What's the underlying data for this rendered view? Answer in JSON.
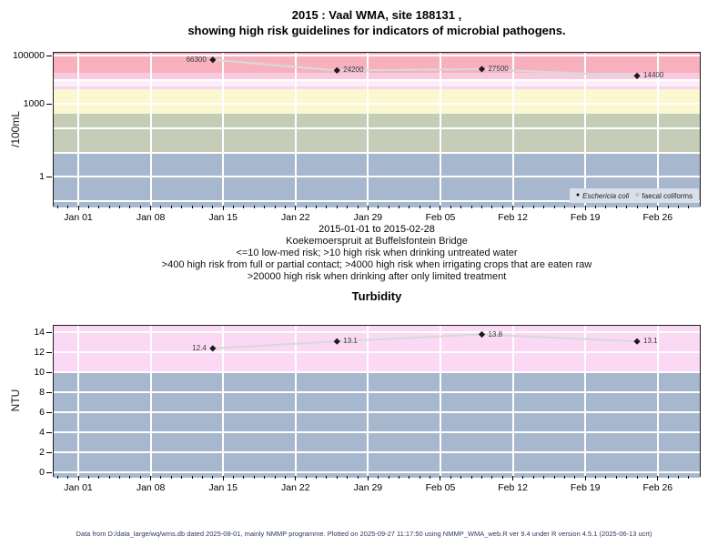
{
  "title": {
    "line1": "2015 : Vaal WMA, site 188131 ,",
    "line2": "showing high risk guidelines for indicators of microbial pathogens."
  },
  "footer": "Data from D:/data_large/wq/wms.db dated 2025-08-01, mainly NMMP programme. Plotted on 2025-09-27 11:17:50 using NMMP_WMA_web.R ver 9.4 under R version 4.5.1 (2025-06-13 ucrt)",
  "colors": {
    "series_line": "#d9d9d9",
    "marker": "#1a1a1a",
    "grid": "#ffffff",
    "legend_bg": "#d9e0e9",
    "footer_text": "#2d3a5f"
  },
  "chart_data": [
    {
      "id": "microbial",
      "type": "line",
      "title": "2015 : Vaal WMA, site 188131 , showing high risk guidelines for indicators of microbial pathogens.",
      "ylabel": "/100mL",
      "xlabel": "2015-01-01 to 2015-02-28",
      "yscale": "log",
      "ylim": [
        0.05,
        130000
      ],
      "xlim": [
        "2015-01-01",
        "2015-02-28"
      ],
      "grid": true,
      "x_tick_labels": [
        "Jan 01",
        "Jan 08",
        "Jan 15",
        "Jan 22",
        "Jan 29",
        "Feb 05",
        "Feb 12",
        "Feb 19",
        "Feb 26"
      ],
      "x_tick_days": [
        0,
        7,
        14,
        21,
        28,
        35,
        42,
        49,
        56
      ],
      "y_ticks": [
        {
          "value": 100000,
          "label": "100000"
        },
        {
          "value": 1000,
          "label": "1000"
        },
        {
          "value": 1,
          "label": "1"
        }
      ],
      "grid_h_values": [
        100000,
        10000,
        1000,
        100,
        10,
        1,
        0.1
      ],
      "bands": [
        {
          "hi": null,
          "lo": 20000,
          "color": "#f8b0be"
        },
        {
          "hi": 20000,
          "lo": 10000,
          "color": "#f7cbdf"
        },
        {
          "hi": 10000,
          "lo": 5500,
          "color": "#fcedf7"
        },
        {
          "hi": 5500,
          "lo": 4000,
          "color": "#f5d7f1"
        },
        {
          "hi": 4000,
          "lo": 400,
          "color": "#fbf7cf"
        },
        {
          "hi": 400,
          "lo": 10,
          "color": "#c5cdb9"
        },
        {
          "hi": 10,
          "lo": null,
          "color": "#a7b7cd"
        }
      ],
      "series": [
        {
          "name": "Eschericia coli",
          "dates": [
            "2015-01-14",
            "2015-01-26",
            "2015-02-09",
            "2015-02-24"
          ],
          "days": [
            13,
            25,
            39,
            54
          ],
          "values": [
            66300,
            24200,
            27500,
            14400
          ],
          "labels": [
            "66300",
            "24200",
            "27500",
            "14400"
          ],
          "label_sides": [
            "left",
            "right",
            "right",
            "right"
          ]
        }
      ],
      "legend": {
        "position": "bottom-right",
        "items": [
          {
            "symbol": "filled-dot",
            "label": "Eschericia coli",
            "italic": true
          },
          {
            "symbol": "open-dot",
            "label": "faecal coliforms",
            "italic": false
          }
        ]
      },
      "notes": [
        "Koekemoerspruit at Buffelsfontein Bridge",
        "<=10 low-med risk; >10 high risk when drinking untreated water",
        ">400 high risk from full or partial contact; >4000 high risk when irrigating crops that are eaten raw",
        ">20000 high risk when drinking after only limited treatment"
      ]
    },
    {
      "id": "turbidity",
      "type": "line",
      "title": "Turbidity",
      "ylabel": "NTU",
      "xlabel": "",
      "yscale": "linear",
      "ylim": [
        -0.5,
        14.7
      ],
      "xlim": [
        "2015-01-01",
        "2015-02-28"
      ],
      "grid": true,
      "x_tick_labels": [
        "Jan 01",
        "Jan 08",
        "Jan 15",
        "Jan 22",
        "Jan 29",
        "Feb 05",
        "Feb 12",
        "Feb 19",
        "Feb 26"
      ],
      "x_tick_days": [
        0,
        7,
        14,
        21,
        28,
        35,
        42,
        49,
        56
      ],
      "y_ticks": [
        {
          "value": 0,
          "label": "0"
        },
        {
          "value": 2,
          "label": "2"
        },
        {
          "value": 4,
          "label": "4"
        },
        {
          "value": 6,
          "label": "6"
        },
        {
          "value": 8,
          "label": "8"
        },
        {
          "value": 10,
          "label": "10"
        },
        {
          "value": 12,
          "label": "12"
        },
        {
          "value": 14,
          "label": "14"
        }
      ],
      "grid_h_values": [
        0,
        2,
        4,
        6,
        8,
        10,
        12,
        14
      ],
      "bands": [
        {
          "hi": null,
          "lo": 10,
          "color": "#fbd9f4"
        },
        {
          "hi": 10,
          "lo": null,
          "color": "#a7b7cd"
        }
      ],
      "series": [
        {
          "name": "Turbidity",
          "dates": [
            "2015-01-14",
            "2015-01-26",
            "2015-02-09",
            "2015-02-24"
          ],
          "days": [
            13,
            25,
            39,
            54
          ],
          "values": [
            12.4,
            13.1,
            13.8,
            13.1
          ],
          "labels": [
            "12.4",
            "13.1",
            "13.8",
            "13.1"
          ],
          "label_sides": [
            "left",
            "right",
            "right",
            "right"
          ]
        }
      ]
    }
  ]
}
